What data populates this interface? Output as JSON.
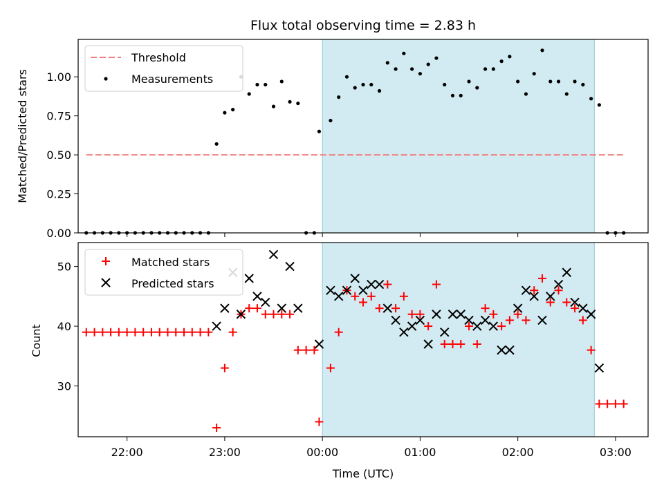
{
  "chart_data": [
    {
      "type": "scatter",
      "title": "Flux total observing time = 2.83 h",
      "ylabel": "Matched/Predicted stars",
      "xlabel": "",
      "xlim": [
        "21:30",
        "03:20"
      ],
      "ylim": [
        0,
        1.24
      ],
      "yticks": [
        "0.00",
        "0.25",
        "0.50",
        "0.75",
        "1.00"
      ],
      "shaded_region": {
        "x_start": "00:00",
        "x_end": "02:47",
        "color": "#add8e6"
      },
      "legend": {
        "placement": "top-left",
        "entries": [
          "Threshold",
          "Measurements"
        ]
      },
      "threshold": {
        "name": "Threshold",
        "value": 0.5,
        "x_start": "21:35",
        "x_end": "03:05",
        "color": "#f08080",
        "style": "dashed"
      },
      "series": [
        {
          "name": "Measurements",
          "marker": "dot",
          "color": "#000000",
          "x": [
            "21:35",
            "21:40",
            "21:45",
            "21:50",
            "21:55",
            "22:00",
            "22:05",
            "22:10",
            "22:15",
            "22:20",
            "22:25",
            "22:30",
            "22:35",
            "22:40",
            "22:45",
            "22:50",
            "22:55",
            "23:00",
            "23:05",
            "23:10",
            "23:15",
            "23:20",
            "23:25",
            "23:30",
            "23:35",
            "23:40",
            "23:45",
            "23:50",
            "23:55",
            "23:58",
            "00:05",
            "00:10",
            "00:15",
            "00:20",
            "00:25",
            "00:30",
            "00:35",
            "00:40",
            "00:45",
            "00:50",
            "00:55",
            "01:00",
            "01:05",
            "01:10",
            "01:15",
            "01:20",
            "01:25",
            "01:30",
            "01:35",
            "01:40",
            "01:45",
            "01:50",
            "01:55",
            "02:00",
            "02:05",
            "02:10",
            "02:15",
            "02:20",
            "02:25",
            "02:30",
            "02:35",
            "02:40",
            "02:45",
            "02:50",
            "02:55",
            "03:00",
            "03:05"
          ],
          "y": [
            0,
            0,
            0,
            0,
            0,
            0,
            0,
            0,
            0,
            0,
            0,
            0,
            0,
            0,
            0,
            0,
            0.57,
            0.77,
            0.79,
            1.0,
            0.89,
            0.95,
            0.95,
            0.81,
            0.97,
            0.84,
            0.83,
            0,
            0,
            0.65,
            0.72,
            0.87,
            1.0,
            0.93,
            0.95,
            0.95,
            0.91,
            1.09,
            1.05,
            1.15,
            1.05,
            1.02,
            1.08,
            1.12,
            0.95,
            0.88,
            0.88,
            0.97,
            0.93,
            1.05,
            1.05,
            1.1,
            1.13,
            0.97,
            0.89,
            1.02,
            1.17,
            0.97,
            0.97,
            0.89,
            0.97,
            0.95,
            0.86,
            0.82,
            0,
            0,
            0
          ]
        }
      ]
    },
    {
      "type": "scatter",
      "title": "",
      "xlabel": "Time (UTC)",
      "ylabel": "Count",
      "xlim": [
        "21:30",
        "03:20"
      ],
      "ylim": [
        21.5,
        54
      ],
      "xticks": [
        "22:00",
        "23:00",
        "00:00",
        "01:00",
        "02:00",
        "03:00"
      ],
      "yticks": [
        "30",
        "40",
        "50"
      ],
      "shaded_region": {
        "x_start": "00:00",
        "x_end": "02:47",
        "color": "#add8e6"
      },
      "legend": {
        "placement": "top-left",
        "entries": [
          "Matched stars",
          "Predicted stars"
        ]
      },
      "series": [
        {
          "name": "Matched stars",
          "marker": "plus",
          "color": "#ff0000",
          "x": [
            "21:35",
            "21:40",
            "21:45",
            "21:50",
            "21:55",
            "22:00",
            "22:05",
            "22:10",
            "22:15",
            "22:20",
            "22:25",
            "22:30",
            "22:35",
            "22:40",
            "22:45",
            "22:50",
            "22:55",
            "23:00",
            "23:05",
            "23:10",
            "23:15",
            "23:20",
            "23:25",
            "23:30",
            "23:35",
            "23:40",
            "23:45",
            "23:50",
            "23:55",
            "23:58",
            "00:05",
            "00:10",
            "00:15",
            "00:20",
            "00:25",
            "00:30",
            "00:35",
            "00:40",
            "00:45",
            "00:50",
            "00:55",
            "01:00",
            "01:05",
            "01:10",
            "01:15",
            "01:20",
            "01:25",
            "01:30",
            "01:35",
            "01:40",
            "01:45",
            "01:50",
            "01:55",
            "02:00",
            "02:05",
            "02:10",
            "02:15",
            "02:20",
            "02:25",
            "02:30",
            "02:35",
            "02:40",
            "02:45",
            "02:50",
            "02:55",
            "03:00",
            "03:05"
          ],
          "y": [
            39,
            39,
            39,
            39,
            39,
            39,
            39,
            39,
            39,
            39,
            39,
            39,
            39,
            39,
            39,
            39,
            23,
            33,
            39,
            42,
            43,
            43,
            42,
            42,
            42,
            42,
            36,
            36,
            36,
            24,
            33,
            39,
            46,
            45,
            44,
            45,
            43,
            47,
            43,
            45,
            42,
            42,
            40,
            47,
            37,
            37,
            37,
            40,
            37,
            43,
            42,
            40,
            41,
            42,
            41,
            46,
            48,
            44,
            46,
            44,
            43,
            41,
            36,
            27,
            27,
            27,
            27
          ]
        },
        {
          "name": "Predicted stars",
          "marker": "x",
          "color": "#000000",
          "x": [
            "22:55",
            "23:00",
            "23:05",
            "23:10",
            "23:15",
            "23:20",
            "23:25",
            "23:30",
            "23:35",
            "23:40",
            "23:45",
            "23:58",
            "00:05",
            "00:10",
            "00:15",
            "00:20",
            "00:25",
            "00:30",
            "00:35",
            "00:40",
            "00:45",
            "00:50",
            "00:55",
            "01:00",
            "01:05",
            "01:10",
            "01:15",
            "01:20",
            "01:25",
            "01:30",
            "01:35",
            "01:40",
            "01:45",
            "01:50",
            "01:55",
            "02:00",
            "02:05",
            "02:10",
            "02:15",
            "02:20",
            "02:25",
            "02:30",
            "02:35",
            "02:40",
            "02:45",
            "02:50"
          ],
          "y": [
            40,
            43,
            49,
            42,
            48,
            45,
            44,
            52,
            43,
            50,
            43,
            37,
            46,
            45,
            46,
            48,
            46,
            47,
            47,
            43,
            41,
            39,
            40,
            41,
            37,
            42,
            39,
            42,
            42,
            41,
            40,
            41,
            40,
            36,
            36,
            43,
            46,
            45,
            41,
            45,
            47,
            49,
            44,
            43,
            42,
            33
          ]
        }
      ]
    }
  ]
}
